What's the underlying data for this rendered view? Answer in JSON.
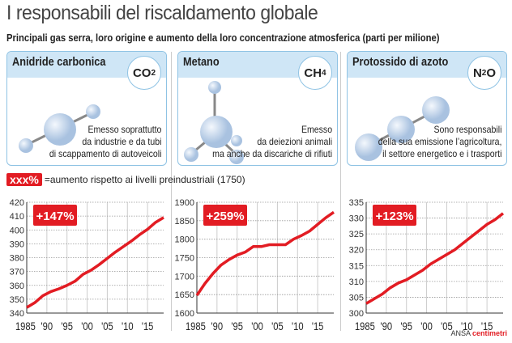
{
  "title": "I responsabili del riscaldamento globale",
  "subtitle": "Principali gas serra, loro origine e aumento della loro concentrazione atmosferica (parti per milione)",
  "gases": [
    {
      "name": "Anidride carbonica",
      "formula_main": "CO",
      "formula_sub": "2",
      "formula_tail": "",
      "desc": [
        "Emesso soprattutto",
        "da industrie e da tubi",
        "di scappamento di autoveicoli"
      ]
    },
    {
      "name": "Metano",
      "formula_main": "CH",
      "formula_sub": "4",
      "formula_tail": "",
      "desc": [
        "Emesso",
        "da deiezioni animali",
        "ma anche da discariche di rifiuti"
      ]
    },
    {
      "name": "Protossido di azoto",
      "formula_main": "N",
      "formula_sub": "2",
      "formula_tail": "O",
      "desc": [
        "Sono responsabili",
        "della sua emissione l’agricoltura,",
        "il settore energetico e i trasporti"
      ]
    }
  ],
  "legend": {
    "tag": "xxx%",
    "text": "=aumento rispetto ai livelli preindustriali (1750)"
  },
  "credit": {
    "a": "ANSA",
    "b": "centimetri"
  },
  "colors": {
    "line": "#e21c23",
    "box_border": "#8fc3e4",
    "box_header": "#cfe6f6"
  },
  "chart_data": [
    {
      "type": "line",
      "name": "CO2",
      "badge": "+147%",
      "ylim": [
        340,
        420
      ],
      "yticks": [
        340,
        350,
        360,
        370,
        380,
        390,
        400,
        410,
        420
      ],
      "xlim": [
        1985,
        2019
      ],
      "xticks": [
        1985,
        1990,
        1995,
        2000,
        2005,
        2010,
        2015
      ],
      "xticklabels": [
        "1985",
        "'90",
        "'95",
        "'00",
        "'05",
        "'10",
        "'15"
      ],
      "x": [
        1985,
        1987,
        1989,
        1991,
        1993,
        1995,
        1997,
        1999,
        2001,
        2003,
        2005,
        2007,
        2009,
        2011,
        2013,
        2015,
        2017,
        2019
      ],
      "y": [
        344,
        347.5,
        352.5,
        355.5,
        357.5,
        360,
        363,
        368,
        371,
        375,
        379.5,
        384,
        388,
        392,
        396.5,
        400.5,
        405.5,
        409
      ]
    },
    {
      "type": "line",
      "name": "CH4",
      "badge": "+259%",
      "ylim": [
        1600,
        1900
      ],
      "yticks": [
        1600,
        1650,
        1700,
        1750,
        1800,
        1850,
        1900
      ],
      "xlim": [
        1985,
        2019
      ],
      "xticks": [
        1985,
        1990,
        1995,
        2000,
        2005,
        2010,
        2015
      ],
      "xticklabels": [
        "1985",
        "'90",
        "'95",
        "'00",
        "'05",
        "'10",
        "'15"
      ],
      "x": [
        1985,
        1987,
        1989,
        1991,
        1993,
        1995,
        1997,
        1999,
        2001,
        2003,
        2005,
        2007,
        2009,
        2011,
        2013,
        2015,
        2017,
        2019
      ],
      "y": [
        1648,
        1680,
        1707,
        1730,
        1745,
        1757,
        1765,
        1780,
        1780,
        1785,
        1785,
        1785,
        1800,
        1810,
        1822,
        1840,
        1858,
        1873
      ]
    },
    {
      "type": "line",
      "name": "N2O",
      "badge": "+123%",
      "ylim": [
        300,
        335
      ],
      "yticks": [
        300,
        305,
        310,
        315,
        320,
        325,
        330,
        335
      ],
      "xlim": [
        1985,
        2019
      ],
      "xticks": [
        1985,
        1990,
        1995,
        2000,
        2005,
        2010,
        2015
      ],
      "xticklabels": [
        "1985",
        "'90",
        "'95",
        "'00",
        "'05",
        "'10",
        "'15"
      ],
      "x": [
        1985,
        1987,
        1989,
        1991,
        1993,
        1995,
        1997,
        1999,
        2001,
        2003,
        2005,
        2007,
        2009,
        2011,
        2013,
        2015,
        2017,
        2019
      ],
      "y": [
        303,
        304.5,
        306,
        308,
        309.5,
        310.5,
        312,
        313.5,
        315.5,
        317,
        318.5,
        320,
        322,
        324,
        326,
        328,
        329.5,
        331.5
      ]
    }
  ]
}
